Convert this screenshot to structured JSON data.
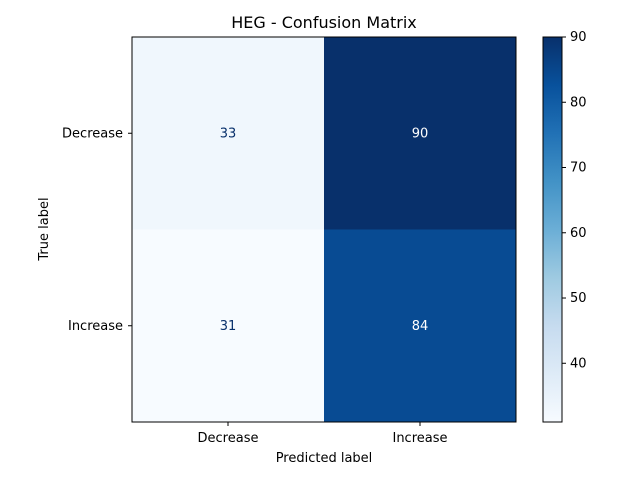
{
  "chart_data": {
    "type": "heatmap",
    "title": "HEG - Confusion Matrix",
    "xlabel": "Predicted label",
    "ylabel": "True label",
    "x_categories": [
      "Decrease",
      "Increase"
    ],
    "y_categories": [
      "Decrease",
      "Increase"
    ],
    "values": [
      [
        33,
        90
      ],
      [
        31,
        84
      ]
    ],
    "colormap": "Blues",
    "value_range": [
      31,
      90
    ],
    "colorbar_ticks": [
      40,
      50,
      60,
      70,
      80,
      90
    ],
    "grid": false
  }
}
